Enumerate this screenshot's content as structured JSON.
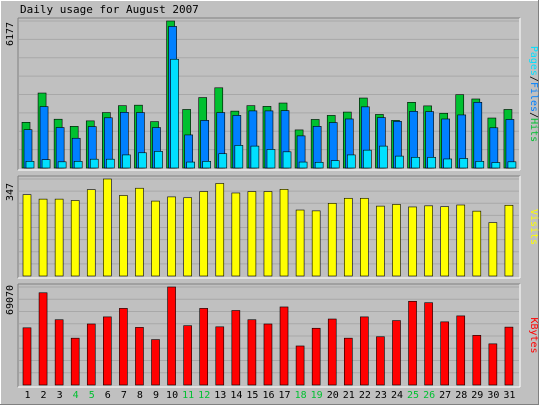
{
  "title": "Daily usage for August 2007",
  "colors": {
    "background": "#c0c0c0",
    "hits": "#00c030",
    "files": "#0080ff",
    "pages": "#00e0ff",
    "visits": "#ffff00",
    "kbytes": "#ff0000",
    "weekend_label": "#00c030",
    "axis_text": "#000000"
  },
  "chart_data": [
    {
      "type": "bar",
      "title": "Daily usage for August 2007",
      "ymax_label": "6177",
      "ylim": [
        0,
        6177
      ],
      "legend": [
        "Pages",
        "Files",
        "Hits"
      ],
      "legend_position": "right, vertical",
      "categories": [
        "1",
        "2",
        "3",
        "4",
        "5",
        "6",
        "7",
        "8",
        "9",
        "10",
        "11",
        "12",
        "13",
        "14",
        "15",
        "16",
        "17",
        "18",
        "19",
        "20",
        "21",
        "22",
        "23",
        "24",
        "25",
        "26",
        "27",
        "28",
        "29",
        "30",
        "31"
      ],
      "weekend_days": [
        "4",
        "5",
        "11",
        "12",
        "18",
        "19",
        "25",
        "26"
      ],
      "series": [
        {
          "name": "Hits",
          "values": [
            1920,
            3150,
            2050,
            1750,
            1980,
            2330,
            2620,
            2640,
            1950,
            6177,
            2460,
            2960,
            3370,
            2390,
            2620,
            2590,
            2730,
            1600,
            2040,
            2210,
            2350,
            2940,
            2250,
            2000,
            2760,
            2610,
            2300,
            3080,
            2900,
            2100,
            2460
          ]
        },
        {
          "name": "Files",
          "values": [
            1610,
            2580,
            1700,
            1250,
            1740,
            2110,
            2340,
            2330,
            1700,
            5950,
            1390,
            2000,
            2330,
            2210,
            2400,
            2400,
            2410,
            1350,
            1750,
            1910,
            2060,
            2570,
            2120,
            1960,
            2380,
            2370,
            2060,
            2230,
            2760,
            1690,
            2040
          ]
        },
        {
          "name": "Pages",
          "values": [
            280,
            350,
            260,
            280,
            370,
            370,
            550,
            640,
            700,
            4570,
            250,
            280,
            600,
            950,
            920,
            780,
            680,
            250,
            240,
            310,
            550,
            750,
            920,
            500,
            450,
            450,
            380,
            400,
            280,
            230,
            260
          ]
        }
      ]
    },
    {
      "type": "bar",
      "ymax_label": "347",
      "ylim": [
        0,
        347
      ],
      "legend": [
        "Visits"
      ],
      "legend_position": "right, vertical",
      "categories": [
        "1",
        "2",
        "3",
        "4",
        "5",
        "6",
        "7",
        "8",
        "9",
        "10",
        "11",
        "12",
        "13",
        "14",
        "15",
        "16",
        "17",
        "18",
        "19",
        "20",
        "21",
        "22",
        "23",
        "24",
        "25",
        "26",
        "27",
        "28",
        "29",
        "30",
        "31"
      ],
      "series": [
        {
          "name": "Visits",
          "values": [
            291,
            275,
            275,
            270,
            309,
            347,
            288,
            314,
            268,
            283,
            280,
            302,
            331,
            297,
            302,
            302,
            310,
            236,
            233,
            260,
            278,
            278,
            250,
            256,
            247,
            251,
            248,
            254,
            232,
            191,
            253
          ]
        }
      ]
    },
    {
      "type": "bar",
      "ymax_label": "69070",
      "ylim": [
        0,
        69070
      ],
      "legend": [
        "KBytes"
      ],
      "legend_position": "right, vertical",
      "categories": [
        "1",
        "2",
        "3",
        "4",
        "5",
        "6",
        "7",
        "8",
        "9",
        "10",
        "11",
        "12",
        "13",
        "14",
        "15",
        "16",
        "17",
        "18",
        "19",
        "20",
        "21",
        "22",
        "23",
        "24",
        "25",
        "26",
        "27",
        "28",
        "29",
        "30",
        "31"
      ],
      "series": [
        {
          "name": "KBytes",
          "values": [
            40300,
            65000,
            46000,
            33000,
            43000,
            48000,
            54000,
            40600,
            32000,
            69070,
            41800,
            54000,
            41000,
            52500,
            46000,
            43000,
            55000,
            27500,
            40000,
            46500,
            33000,
            48000,
            34000,
            45400,
            59000,
            58000,
            44500,
            48700,
            35000,
            29000,
            40800
          ]
        }
      ]
    }
  ]
}
